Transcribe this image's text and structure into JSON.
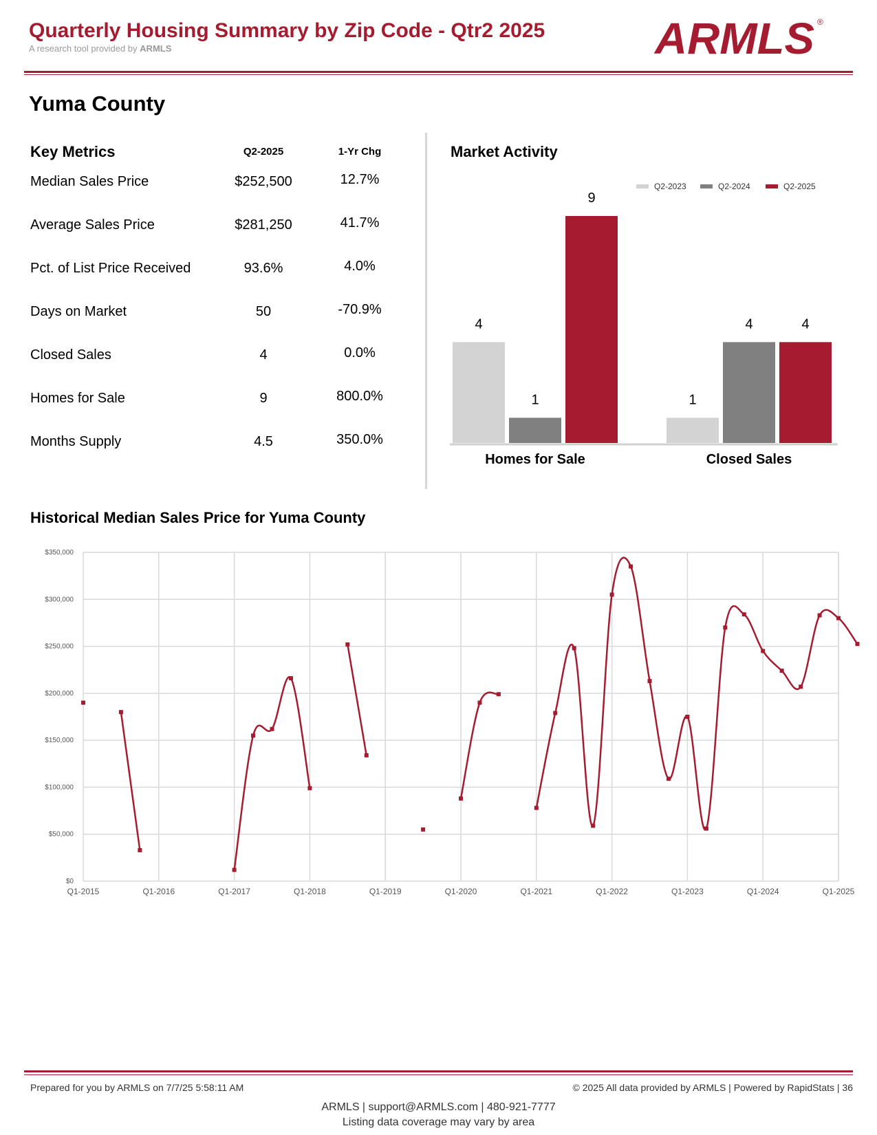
{
  "header": {
    "title": "Quarterly Housing Summary by Zip Code - Qtr2 2025",
    "subtitle_prefix": "A research tool provided by",
    "subtitle_brand": "ARMLS",
    "logo_text": "ARMLS",
    "logo_mark": "®"
  },
  "county": "Yuma County",
  "key_metrics": {
    "title": "Key Metrics",
    "col_value": "Q2-2025",
    "col_change": "1-Yr Chg",
    "rows": [
      {
        "label": "Median Sales Price",
        "value": "$252,500",
        "change": "12.7%"
      },
      {
        "label": "Average Sales Price",
        "value": "$281,250",
        "change": "41.7%"
      },
      {
        "label": "Pct. of List Price Received",
        "value": "93.6%",
        "change": "4.0%"
      },
      {
        "label": "Days on Market",
        "value": "50",
        "change": "-70.9%"
      },
      {
        "label": "Closed Sales",
        "value": "4",
        "change": "0.0%"
      },
      {
        "label": "Homes for Sale",
        "value": "9",
        "change": "800.0%"
      },
      {
        "label": "Months Supply",
        "value": "4.5",
        "change": "350.0%"
      }
    ]
  },
  "market_activity": {
    "title": "Market Activity"
  },
  "historical": {
    "title": "Historical Median Sales Price for Yuma County"
  },
  "colors": {
    "brand": "#a51c30",
    "q2_2023": "#d3d3d3",
    "q2_2024": "#808080",
    "q2_2025": "#a51c30"
  },
  "chart_data": [
    {
      "type": "bar",
      "title": "Market Activity",
      "categories": [
        "Homes for Sale",
        "Closed Sales"
      ],
      "series": [
        {
          "name": "Q2-2023",
          "values": [
            4,
            1
          ]
        },
        {
          "name": "Q2-2024",
          "values": [
            1,
            4
          ]
        },
        {
          "name": "Q2-2025",
          "values": [
            9,
            4
          ]
        }
      ],
      "ylim": [
        0,
        9
      ],
      "legend": "top-right",
      "data_labels": true
    },
    {
      "type": "line",
      "title": "Historical Median Sales Price for Yuma County",
      "ylim": [
        0,
        350000
      ],
      "y_ticks": [
        "$0",
        "$50,000",
        "$100,000",
        "$150,000",
        "$200,000",
        "$250,000",
        "$300,000",
        "$350,000"
      ],
      "x_ticks": [
        "Q1-2015",
        "Q1-2016",
        "Q1-2017",
        "Q1-2018",
        "Q1-2019",
        "Q1-2020",
        "Q1-2021",
        "Q1-2022",
        "Q1-2023",
        "Q1-2024",
        "Q1-2025"
      ],
      "grid": true,
      "series": [
        {
          "values": [
            {
              "x": "Q1-2015",
              "y": 190000
            },
            {
              "x": "Q3-2015",
              "y": 180000
            },
            {
              "x": "Q4-2015",
              "y": 33000
            },
            {
              "x": "Q1-2017",
              "y": 12000
            },
            {
              "x": "Q2-2017",
              "y": 155000
            },
            {
              "x": "Q3-2017",
              "y": 162000
            },
            {
              "x": "Q4-2017",
              "y": 216000
            },
            {
              "x": "Q1-2018",
              "y": 99000
            },
            {
              "x": "Q3-2018",
              "y": 252000
            },
            {
              "x": "Q4-2018",
              "y": 134000
            },
            {
              "x": "Q3-2019",
              "y": 55000
            },
            {
              "x": "Q1-2020",
              "y": 88000
            },
            {
              "x": "Q2-2020",
              "y": 190000
            },
            {
              "x": "Q3-2020",
              "y": 199000
            },
            {
              "x": "Q1-2021",
              "y": 78000
            },
            {
              "x": "Q2-2021",
              "y": 179000
            },
            {
              "x": "Q3-2021",
              "y": 248000
            },
            {
              "x": "Q4-2021",
              "y": 59000
            },
            {
              "x": "Q1-2022",
              "y": 305000
            },
            {
              "x": "Q2-2022",
              "y": 335000
            },
            {
              "x": "Q3-2022",
              "y": 213000
            },
            {
              "x": "Q4-2022",
              "y": 109000
            },
            {
              "x": "Q1-2023",
              "y": 175000
            },
            {
              "x": "Q2-2023",
              "y": 56000
            },
            {
              "x": "Q3-2023",
              "y": 270000
            },
            {
              "x": "Q4-2023",
              "y": 284000
            },
            {
              "x": "Q1-2024",
              "y": 245000
            },
            {
              "x": "Q2-2024",
              "y": 224000
            },
            {
              "x": "Q3-2024",
              "y": 207000
            },
            {
              "x": "Q4-2024",
              "y": 283000
            },
            {
              "x": "Q1-2025",
              "y": 280000
            },
            {
              "x": "Q2-2025",
              "y": 252500
            }
          ]
        }
      ]
    }
  ],
  "footer": {
    "prepared": "Prepared for you by ARMLS on 7/7/25 5:58:11 AM",
    "copyright": "© 2025 All data provided by ARMLS | Powered by RapidStats  | 36",
    "contact": "ARMLS | support@ARMLS.com | 480-921-7777",
    "coverage": "Listing data coverage may vary by area"
  }
}
